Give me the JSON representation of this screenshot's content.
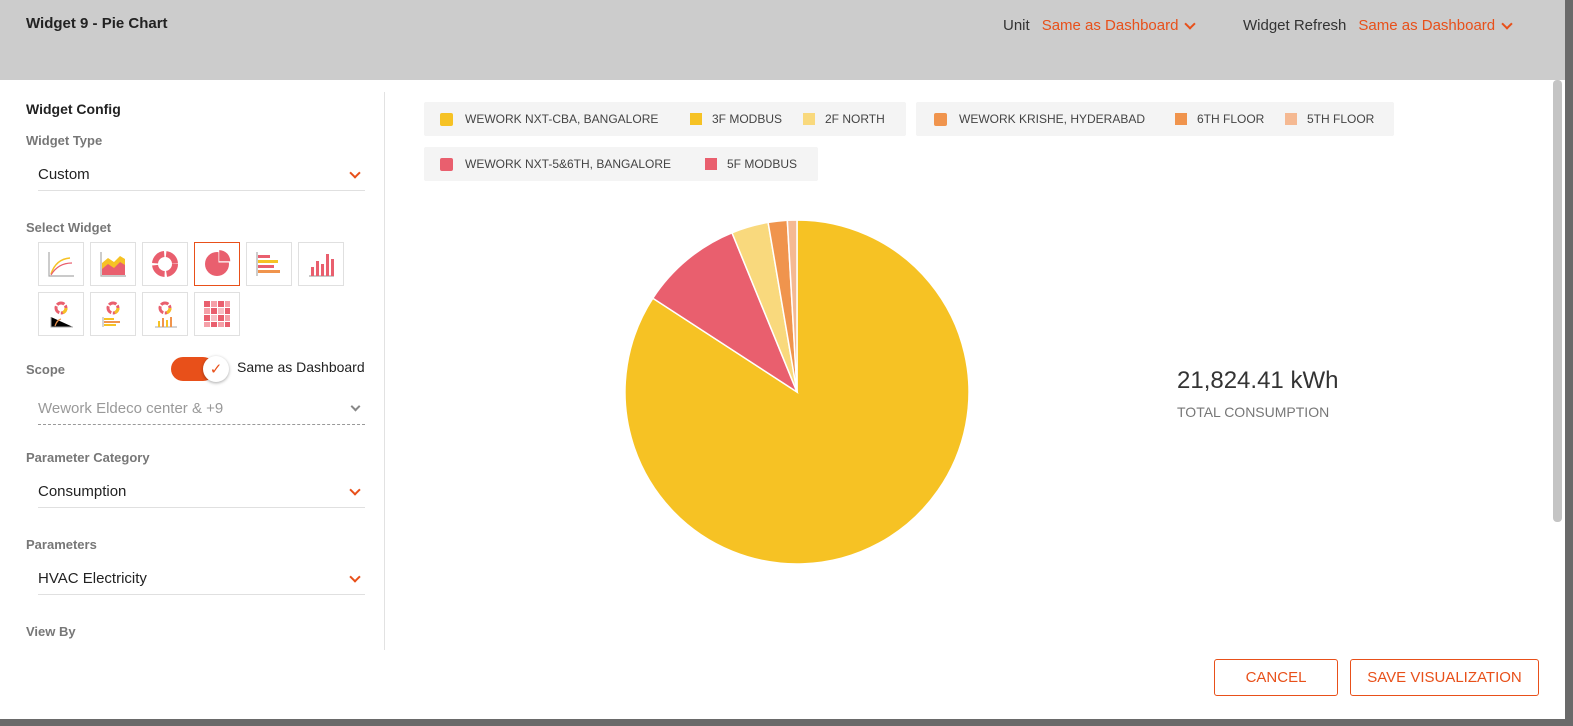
{
  "header": {
    "title": "Widget 9 - Pie Chart",
    "unit_label": "Unit",
    "unit_value": "Same as Dashboard",
    "refresh_label": "Widget Refresh",
    "refresh_value": "Same as Dashboard"
  },
  "config": {
    "title": "Widget Config",
    "widget_type_label": "Widget Type",
    "widget_type_value": "Custom",
    "select_widget_label": "Select Widget",
    "widget_icons": [
      "line-chart-icon",
      "area-chart-icon",
      "donut-chart-icon",
      "pie-chart-icon",
      "horizontal-bar-icon",
      "vertical-bar-icon",
      "donut-line-icon",
      "donut-hbar-icon",
      "donut-vbar-icon",
      "heatmap-icon"
    ],
    "selected_widget": "pie-chart-icon",
    "scope_label": "Scope",
    "scope_toggle_label": "Same as Dashboard",
    "scope_toggle_on": true,
    "scope_value": "Wework Eldeco center & +9",
    "param_category_label": "Parameter Category",
    "param_category_value": "Consumption",
    "parameters_label": "Parameters",
    "parameters_value": "HVAC Electricity",
    "view_by_label": "View By"
  },
  "legend": {
    "groups": [
      {
        "name": "WEWORK NXT-CBA, BANGALORE",
        "color": "#f6c224",
        "children": [
          {
            "name": "3F MODBUS",
            "color": "#f6c224"
          },
          {
            "name": "2F NORTH",
            "color": "#f9d97d"
          }
        ]
      },
      {
        "name": "WEWORK KRISHE, HYDERABAD",
        "color": "#f0944d",
        "children": [
          {
            "name": "6TH FLOOR",
            "color": "#f0944d"
          },
          {
            "name": "5TH FLOOR",
            "color": "#f5b992"
          }
        ]
      },
      {
        "name": "WEWORK NXT-5&6TH, BANGALORE",
        "color": "#e95f6e",
        "children": [
          {
            "name": "5F MODBUS",
            "color": "#e95f6e"
          }
        ]
      }
    ]
  },
  "chart_data": {
    "type": "pie",
    "categories": [
      "3F MODBUS",
      "5F MODBUS",
      "2F NORTH",
      "6TH FLOOR",
      "5TH FLOOR"
    ],
    "values": [
      84.6,
      9.7,
      3.5,
      1.8,
      0.9
    ],
    "colors": [
      "#f6c224",
      "#e95f6e",
      "#f9d97d",
      "#f0944d",
      "#f5b992"
    ],
    "title": ""
  },
  "summary": {
    "total_value": "21,824.41 kWh",
    "total_label": "TOTAL CONSUMPTION"
  },
  "footer": {
    "cancel_label": "CANCEL",
    "save_label": "SAVE VISUALIZATION"
  },
  "accent_color": "#e8501a"
}
